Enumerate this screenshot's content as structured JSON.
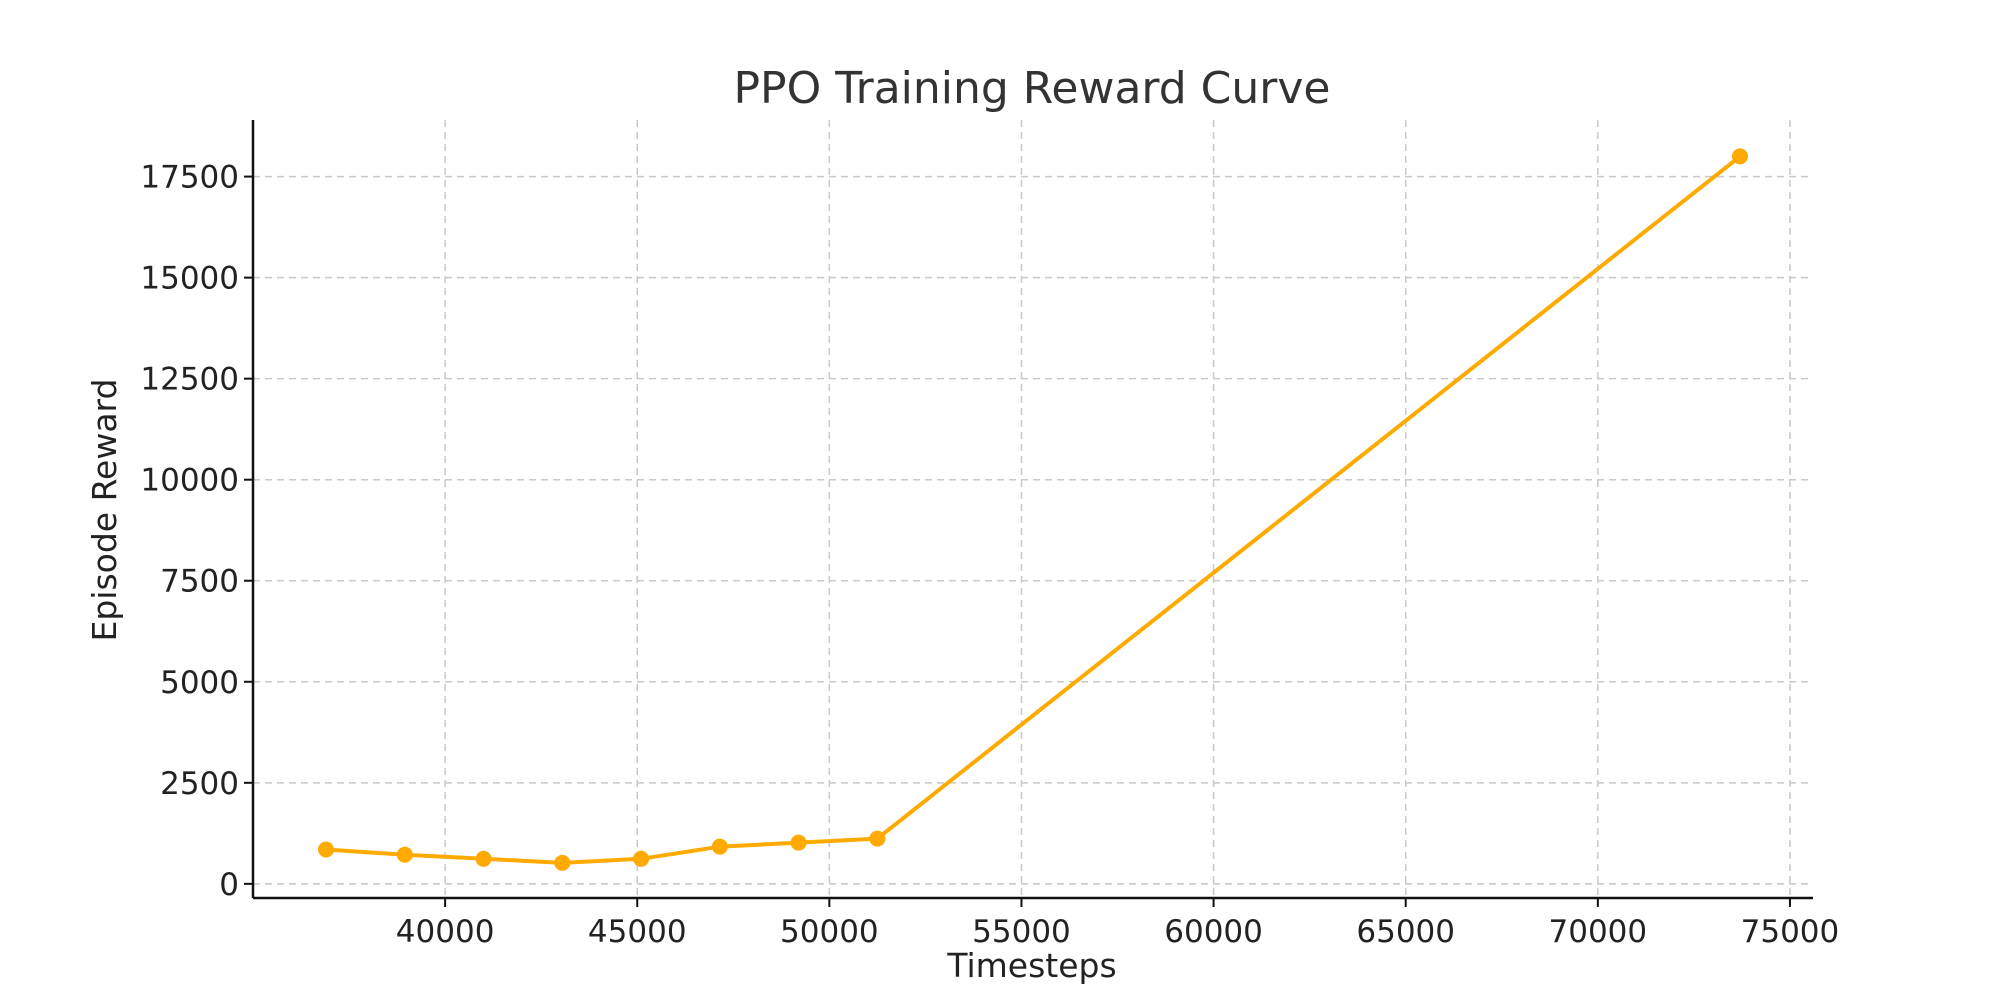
{
  "chart_data": {
    "type": "line",
    "title": "PPO Training Reward Curve",
    "xlabel": "Timesteps",
    "ylabel": "Episode Reward",
    "xlim": [
      35000,
      75600
    ],
    "ylim": [
      -350,
      18900
    ],
    "x_ticks": [
      40000,
      45000,
      50000,
      55000,
      60000,
      65000,
      70000,
      75000
    ],
    "y_ticks": [
      0,
      2500,
      5000,
      7500,
      10000,
      12500,
      15000,
      17500
    ],
    "grid": true,
    "series": [
      {
        "color": "#FFAA00",
        "marker": "circle",
        "x": [
          36900,
          38950,
          41000,
          43050,
          45100,
          47150,
          49200,
          51250,
          73700
        ],
        "y": [
          850,
          720,
          620,
          520,
          620,
          920,
          1020,
          1120,
          18000
        ]
      }
    ]
  }
}
